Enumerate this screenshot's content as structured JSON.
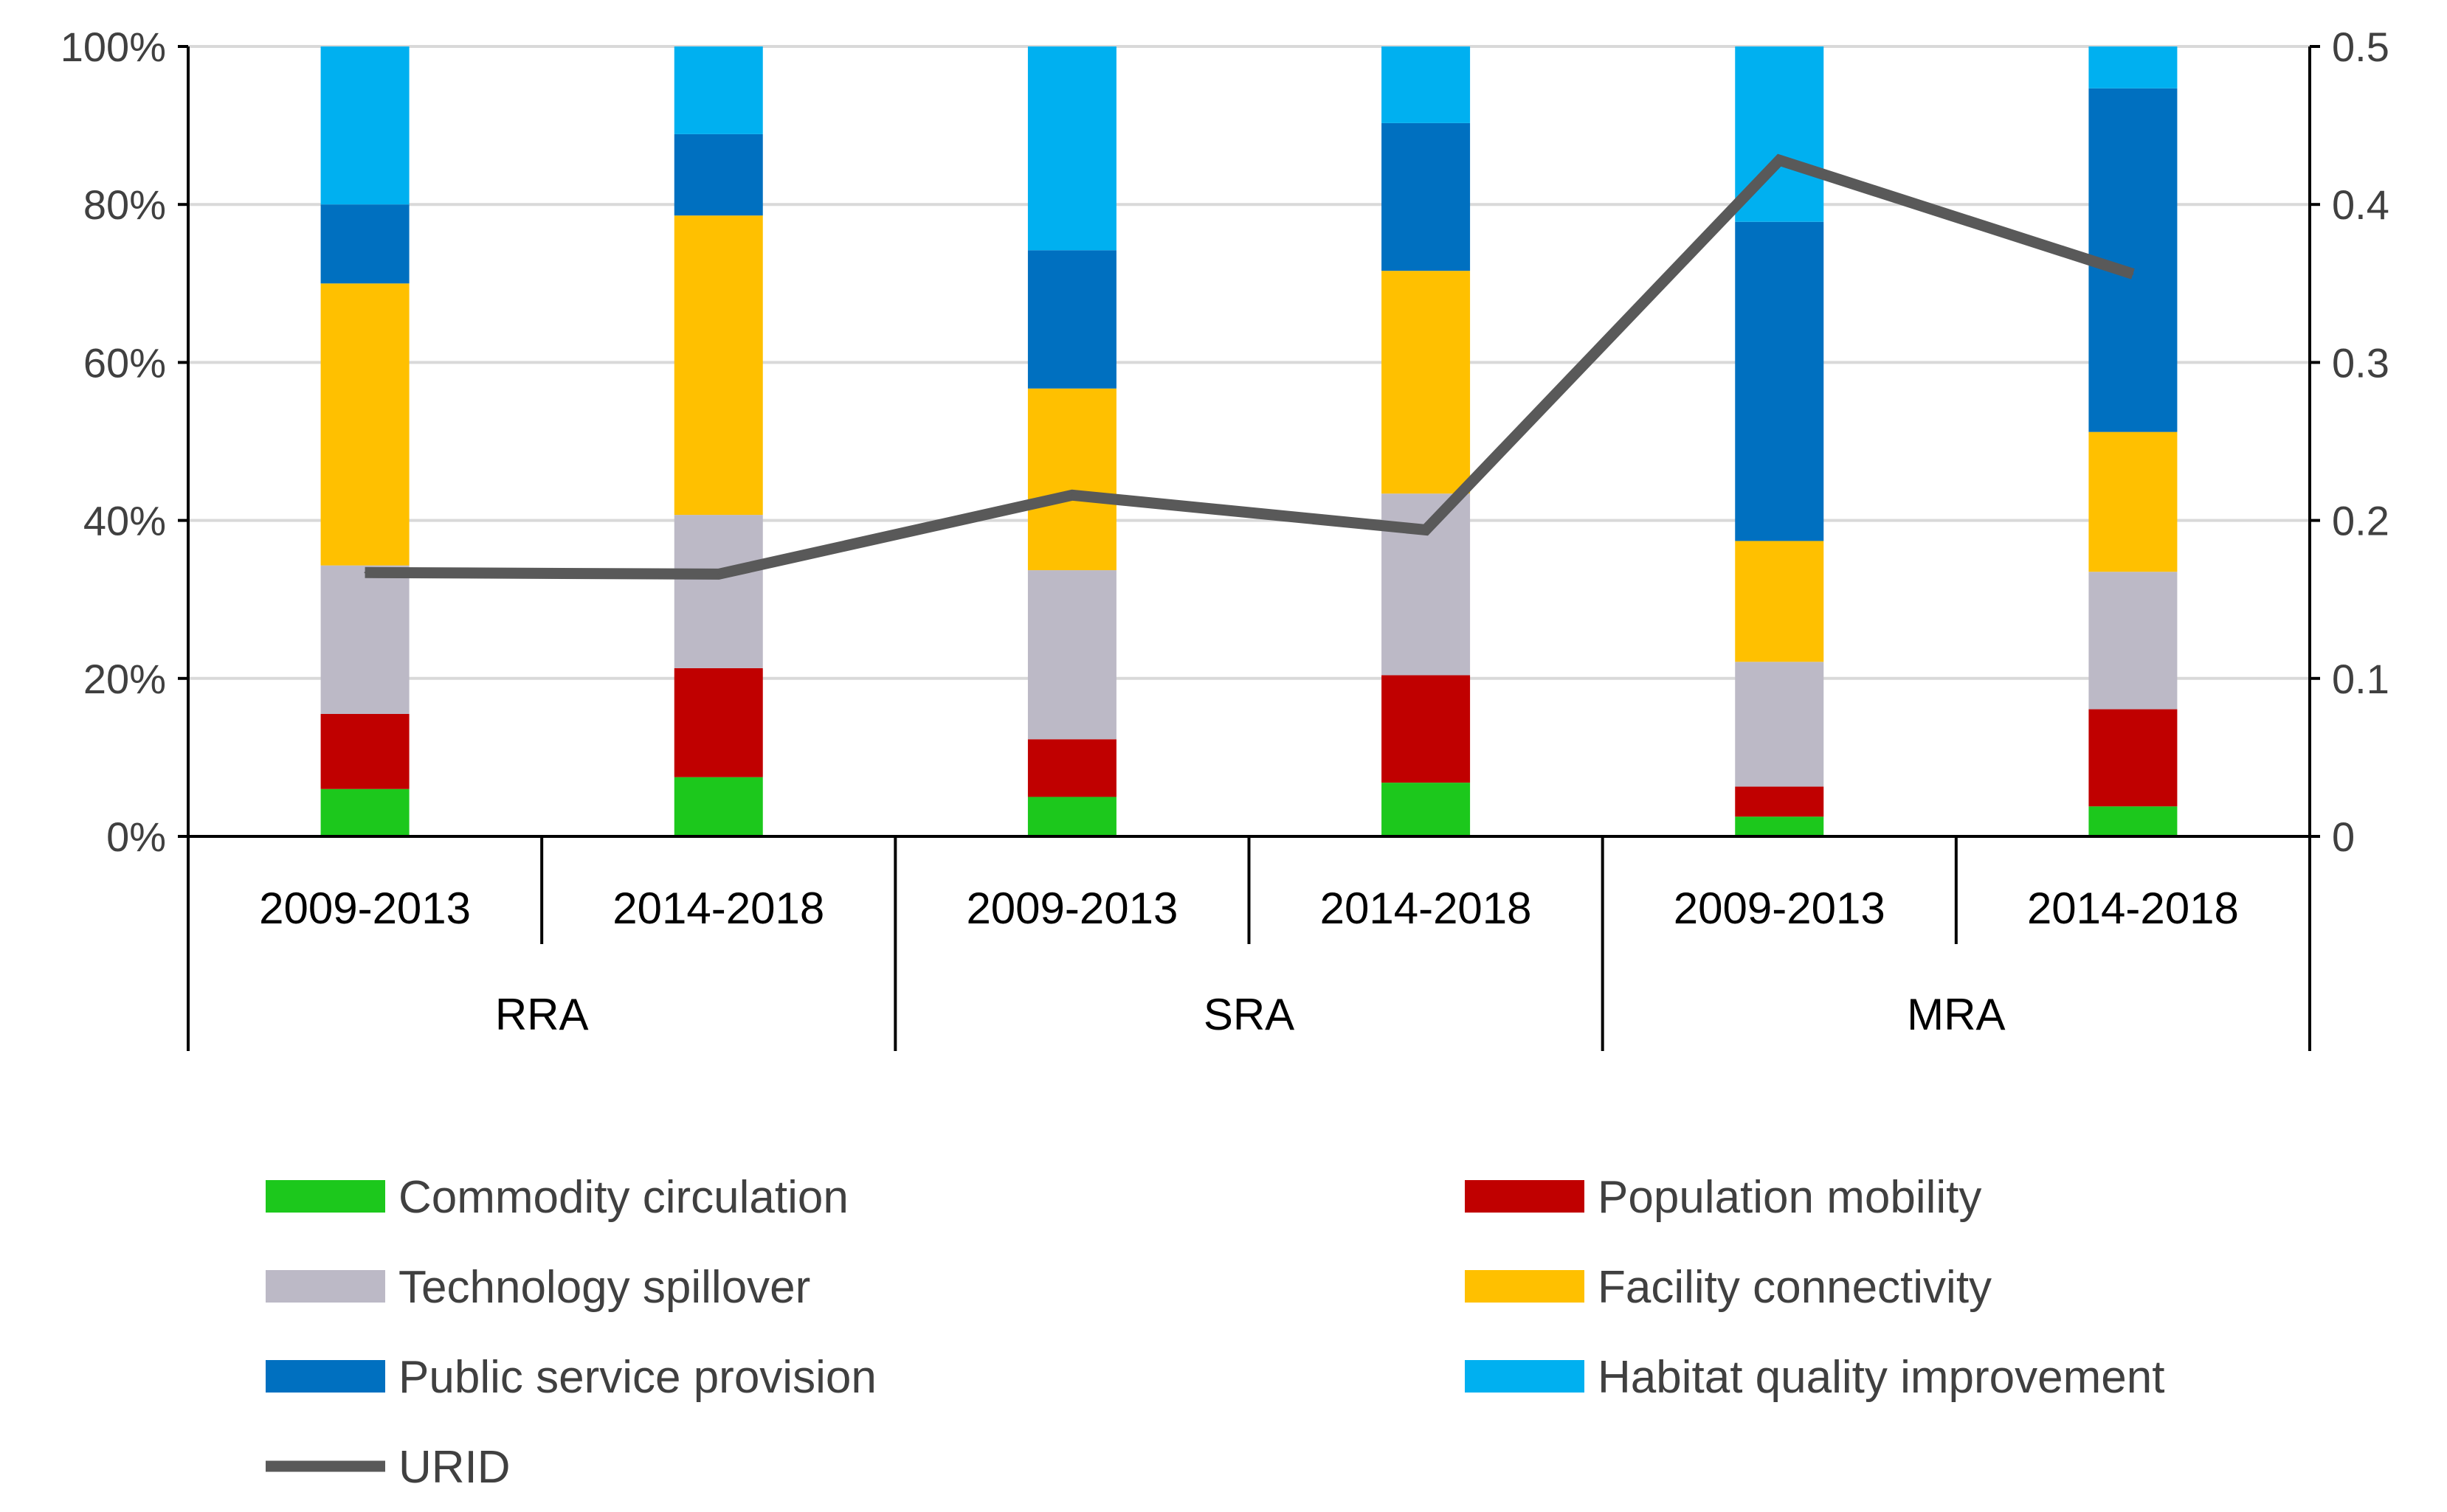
{
  "chart_data": {
    "type": "stacked-bar+line",
    "title": "",
    "ylabel": "",
    "y2label": "",
    "ylim": [
      0,
      100
    ],
    "y2lim": [
      0,
      0.5
    ],
    "yticks": [
      "0%",
      "20%",
      "40%",
      "60%",
      "80%",
      "100%"
    ],
    "y2ticks": [
      "0",
      "0.1",
      "0.2",
      "0.3",
      "0.4",
      "0.5"
    ],
    "grid": true,
    "legend_position": "bottom",
    "groups": [
      {
        "label": "RRA",
        "periods": [
          "2009-2013",
          "2014-2018"
        ]
      },
      {
        "label": "SRA",
        "periods": [
          "2009-2013",
          "2014-2018"
        ]
      },
      {
        "label": "MRA",
        "periods": [
          "2009-2013",
          "2014-2018"
        ]
      }
    ],
    "series": [
      {
        "name": "Commodity circulation",
        "color": "#1CC81C",
        "values": [
          6,
          7.5,
          5,
          6.8,
          2.5,
          3.8
        ]
      },
      {
        "name": "Population mobility",
        "color": "#C00000",
        "values": [
          9.5,
          13.8,
          7.3,
          13.6,
          3.8,
          12.3
        ]
      },
      {
        "name": "Technology spillover",
        "color": "#BCB9C6",
        "values": [
          18.8,
          19.4,
          21.4,
          23,
          15.8,
          17.4
        ]
      },
      {
        "name": "Facility connectivity",
        "color": "#FFC000",
        "values": [
          35.7,
          37.9,
          23,
          28.2,
          15.3,
          17.7
        ]
      },
      {
        "name": "Public service provision",
        "color": "#0070C0",
        "values": [
          10,
          10.3,
          17.5,
          18.7,
          40.4,
          43.5
        ]
      },
      {
        "name": "Habitat quality improvement",
        "color": "#00B0F0",
        "values": [
          20,
          11.1,
          25.8,
          9.7,
          22.2,
          5.3
        ]
      }
    ],
    "line": {
      "name": "URID",
      "color": "#595959",
      "axis": "right",
      "values": [
        0.167,
        0.166,
        0.216,
        0.194,
        0.428,
        0.356
      ]
    },
    "legend_order": [
      "Commodity circulation",
      "Population mobility",
      "Technology spillover",
      "Facility connectivity",
      "Public service provision",
      "Habitat quality improvement",
      "URID"
    ]
  }
}
